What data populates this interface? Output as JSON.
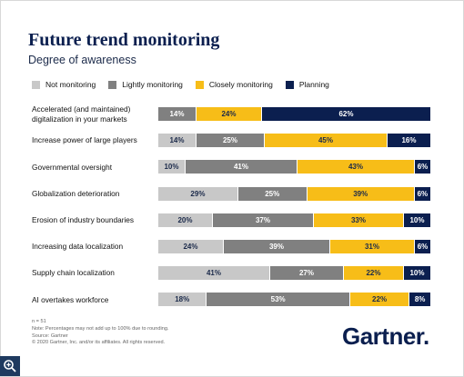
{
  "header": {
    "title": "Future trend monitoring",
    "subtitle": "Degree of awareness"
  },
  "chart_data": {
    "type": "bar",
    "orientation": "horizontal",
    "stacked": true,
    "percent": true,
    "title": "Future trend monitoring",
    "subtitle": "Degree of awareness",
    "legend_position": "top-left",
    "grid": false,
    "categories": [
      "Accelerated (and maintained) digitalization in your markets",
      "Increase power of large players",
      "Governmental oversight",
      "Globalization deterioration",
      "Erosion of industry boundaries",
      "Increasing data localization",
      "Supply chain localization",
      "AI overtakes workforce"
    ],
    "series": [
      {
        "name": "Not monitoring",
        "color": "#c8c8c8",
        "text_color": "#1b2a4a",
        "values": [
          0,
          14,
          10,
          29,
          20,
          24,
          41,
          18
        ]
      },
      {
        "name": "Lightly monitoring",
        "color": "#808080",
        "text_color": "#ffffff",
        "values": [
          14,
          25,
          41,
          25,
          37,
          39,
          27,
          53
        ]
      },
      {
        "name": "Closely monitoring",
        "color": "#f7bd18",
        "text_color": "#1b2a4a",
        "values": [
          24,
          45,
          43,
          39,
          33,
          31,
          22,
          22
        ]
      },
      {
        "name": "Planning",
        "color": "#0b1f4f",
        "text_color": "#ffffff",
        "values": [
          62,
          16,
          6,
          6,
          10,
          6,
          10,
          8
        ]
      }
    ]
  },
  "footnote": {
    "lines": [
      "n = 51",
      "Note: Percentages may not add up to 100% due to rounding.",
      "Source: Gartner",
      "© 2020 Gartner, Inc. and/or its affiliates. All rights reserved."
    ]
  },
  "logo": {
    "text": "Gartner",
    "dot": "."
  },
  "controls": {
    "zoom_icon": "zoom-in-icon"
  }
}
